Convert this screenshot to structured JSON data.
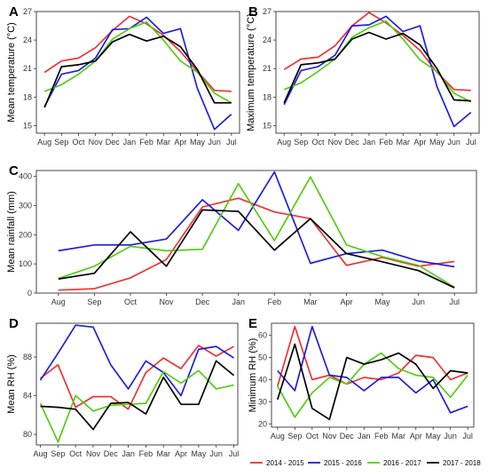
{
  "legend": [
    {
      "name": "2014 - 2015",
      "color": "#ee3333"
    },
    {
      "name": "2015 - 2016",
      "color": "#1f1fdd"
    },
    {
      "name": "2016 - 2017",
      "color": "#55cc11"
    },
    {
      "name": "2017 - 2018",
      "color": "#000000"
    }
  ],
  "chart_data": [
    {
      "panel": "A",
      "type": "line",
      "ylabel": "Mean temperature (°C)",
      "categories": [
        "Aug",
        "Sep",
        "Oct",
        "Nov",
        "Dec",
        "Jan",
        "Feb",
        "Mar",
        "Apr",
        "May",
        "Jun",
        "Jul"
      ],
      "yticks": [
        15,
        18,
        21,
        24,
        27
      ],
      "ylim": [
        14.2,
        27
      ],
      "series": [
        {
          "name": "2014 - 2015",
          "values": [
            20.6,
            21.8,
            22.1,
            23.2,
            25.0,
            26.5,
            25.7,
            24.5,
            22.8,
            20.7,
            18.7,
            18.6
          ]
        },
        {
          "name": "2015 - 2016",
          "values": [
            17.0,
            20.4,
            20.8,
            22.1,
            25.1,
            25.2,
            26.4,
            24.7,
            25.2,
            18.9,
            14.6,
            16.2
          ]
        },
        {
          "name": "2016 - 2017",
          "values": [
            18.6,
            19.3,
            20.4,
            21.8,
            24.1,
            25.2,
            25.9,
            24.0,
            21.8,
            20.6,
            18.4,
            17.4
          ]
        },
        {
          "name": "2017 - 2018",
          "values": [
            16.9,
            21.2,
            21.4,
            21.8,
            23.8,
            24.6,
            23.9,
            24.4,
            23.3,
            20.9,
            17.4,
            17.4
          ]
        }
      ]
    },
    {
      "panel": "B",
      "type": "line",
      "ylabel": "Maximum temperature (°C)",
      "categories": [
        "Aug",
        "Sep",
        "Oct",
        "Nov",
        "Dec",
        "Jan",
        "Feb",
        "Mar",
        "Apr",
        "May",
        "Jun",
        "Jul"
      ],
      "yticks": [
        15,
        18,
        21,
        24,
        27
      ],
      "ylim": [
        14.2,
        27
      ],
      "series": [
        {
          "name": "2014 - 2015",
          "values": [
            20.9,
            22.0,
            22.2,
            23.4,
            25.5,
            26.9,
            25.8,
            24.5,
            22.9,
            20.6,
            18.8,
            18.7
          ]
        },
        {
          "name": "2015 - 2016",
          "values": [
            17.2,
            20.8,
            21.2,
            22.4,
            25.5,
            25.6,
            26.5,
            24.9,
            25.5,
            19.1,
            14.9,
            16.4
          ]
        },
        {
          "name": "2016 - 2017",
          "values": [
            18.8,
            19.5,
            20.7,
            22.0,
            24.3,
            25.3,
            26.0,
            24.1,
            21.9,
            20.7,
            18.4,
            17.5
          ]
        },
        {
          "name": "2017 - 2018",
          "values": [
            17.4,
            21.4,
            21.6,
            22.0,
            24.1,
            24.8,
            24.1,
            24.7,
            23.5,
            21.0,
            17.7,
            17.6
          ]
        }
      ]
    },
    {
      "panel": "C",
      "type": "line",
      "ylabel": "Mean rainfall (mm)",
      "categories": [
        "Aug",
        "Sep",
        "Oct",
        "Nov",
        "Dec",
        "Jan",
        "Feb",
        "Mar",
        "Apr",
        "May",
        "Jun",
        "Jul"
      ],
      "yticks": [
        0,
        100,
        200,
        300,
        400
      ],
      "ylim": [
        0,
        420
      ],
      "series": [
        {
          "name": "2014 - 2015",
          "values": [
            10,
            15,
            52,
            115,
            295,
            325,
            278,
            255,
            95,
            122,
            92,
            108
          ]
        },
        {
          "name": "2015 - 2016",
          "values": [
            145,
            165,
            165,
            185,
            320,
            215,
            415,
            102,
            135,
            147,
            110,
            90
          ]
        },
        {
          "name": "2016 - 2017",
          "values": [
            50,
            92,
            160,
            145,
            150,
            375,
            180,
            398,
            165,
            125,
            95,
            20
          ]
        },
        {
          "name": "2017 - 2018",
          "values": [
            48,
            68,
            210,
            92,
            285,
            280,
            147,
            255,
            135,
            107,
            77,
            18
          ]
        }
      ]
    },
    {
      "panel": "D",
      "type": "line",
      "ylabel": "Mean RH (%)",
      "categories": [
        "Aug",
        "Sep",
        "Oct",
        "Nov",
        "Dec",
        "Jan",
        "Feb",
        "Mar",
        "Apr",
        "May",
        "Jun",
        "Jul"
      ],
      "yticks": [
        80,
        84,
        88
      ],
      "ylim": [
        78.9,
        91.5
      ],
      "series": [
        {
          "name": "2014 - 2015",
          "values": [
            85.8,
            87.2,
            82.8,
            83.9,
            83.9,
            82.6,
            86.4,
            87.9,
            86.8,
            89.2,
            88.1,
            89.1
          ]
        },
        {
          "name": "2015 - 2016",
          "values": [
            85.6,
            88.4,
            91.3,
            91.1,
            87.2,
            84.7,
            87.6,
            86.4,
            84.0,
            88.8,
            89.1,
            87.9
          ]
        },
        {
          "name": "2016 - 2017",
          "values": [
            83.2,
            79.2,
            84.0,
            82.4,
            83.0,
            83.1,
            83.2,
            86.5,
            85.3,
            86.6,
            84.7,
            85.1
          ]
        },
        {
          "name": "2017 - 2018",
          "values": [
            82.9,
            82.8,
            82.6,
            80.5,
            83.2,
            83.3,
            82.1,
            85.9,
            83.1,
            83.1,
            87.6,
            86.1
          ]
        }
      ]
    },
    {
      "panel": "E",
      "type": "line",
      "ylabel": "Minimum RH (%)",
      "categories": [
        "Aug",
        "Sep",
        "Oct",
        "Nov",
        "Dec",
        "Jan",
        "Feb",
        "Mar",
        "Apr",
        "May",
        "Jun",
        "Jul"
      ],
      "yticks": [
        20,
        30,
        40,
        50,
        60
      ],
      "ylim": [
        18.5,
        65.5
      ],
      "series": [
        {
          "name": "2014 - 2015",
          "values": [
            37,
            64,
            40,
            42,
            38,
            41,
            40,
            43,
            51,
            50,
            40,
            43
          ]
        },
        {
          "name": "2015 - 2016",
          "values": [
            44,
            35,
            64,
            42,
            41,
            35,
            41,
            41,
            34,
            40,
            25,
            28
          ]
        },
        {
          "name": "2016 - 2017",
          "values": [
            37,
            23,
            34,
            41,
            38,
            47,
            52,
            45,
            42,
            41,
            32,
            42
          ]
        },
        {
          "name": "2017 - 2018",
          "values": [
            31,
            56,
            27,
            22,
            50,
            47,
            49,
            52,
            47,
            36,
            44,
            43
          ]
        }
      ]
    }
  ]
}
